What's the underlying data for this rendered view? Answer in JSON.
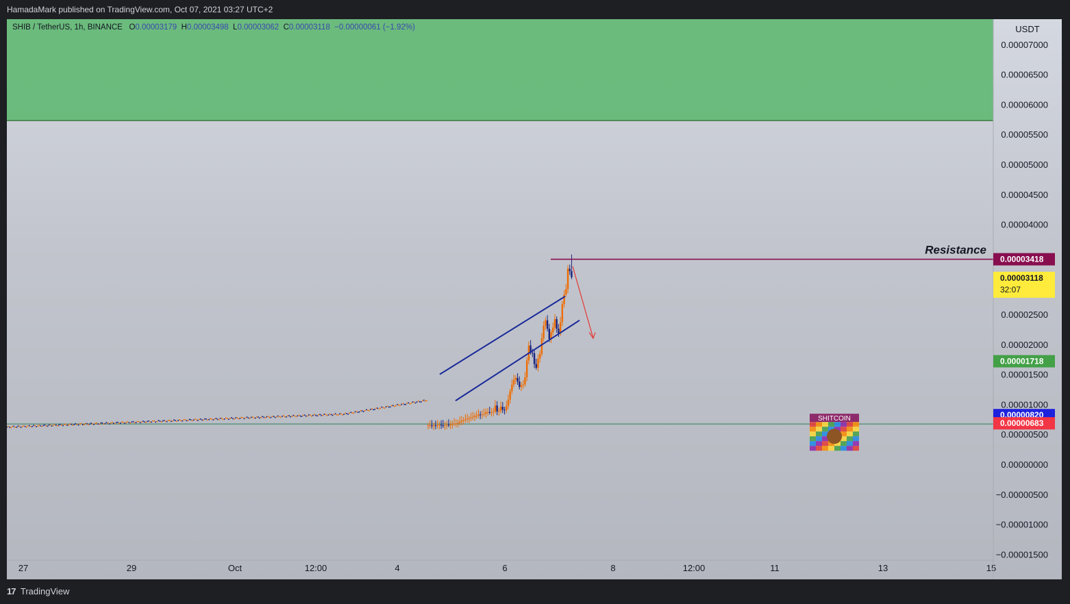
{
  "header": {
    "publisher_text": "HamadaMark published on TradingView.com, Oct 07, 2021 03:27 UTC+2"
  },
  "legend": {
    "symbol": "SHIB / TetherUS, 1h, BINANCE",
    "o_label": "O",
    "o_value": "0.00003179",
    "h_label": "H",
    "h_value": "0.00003498",
    "l_label": "L",
    "l_value": "0.00003062",
    "c_label": "C",
    "c_value": "0.00003118",
    "change": "−0.00000061 (−1.92%)"
  },
  "footer": {
    "logo_glyph": "17",
    "brand": "TradingView"
  },
  "colors": {
    "up": "#ef6c00",
    "down": "#1a237e",
    "channel": "#1a2a99",
    "resistance": "#880e4f",
    "zone": "#5fb872",
    "arrow": "#e53935"
  },
  "chart_data": {
    "type": "candlestick",
    "currency": "USDT",
    "ylim": [
      -1.7e-06,
      7.3e-06
    ],
    "y_ticks": [
      "0.00007000",
      "0.00006500",
      "0.00006000",
      "0.00005500",
      "0.00005000",
      "0.00004500",
      "0.00004000",
      "0.00002500",
      "0.00002000",
      "0.00001500",
      "0.00001000",
      "0.00000500",
      "0.00000000",
      "−0.00000500",
      "−0.00001000",
      "−0.00001500"
    ],
    "y_tick_values": [
      7e-06,
      6.5e-06,
      6e-06,
      5.5e-06,
      5e-06,
      4.5e-06,
      4e-06,
      2.5e-06,
      2e-06,
      1.5e-06,
      1e-06,
      5e-07,
      0,
      -5e-07,
      -1e-06,
      -1.5e-06
    ],
    "x_ticks": [
      "27",
      "29",
      "Oct",
      "12:00",
      "4",
      "6",
      "8",
      "12:00",
      "11",
      "13",
      "15"
    ],
    "price_labels": [
      {
        "value": "0.00003418",
        "price": 3.418e-06,
        "color": "#880e4f",
        "text_color": "#ffffff"
      },
      {
        "value": "0.00003118",
        "sub": "32:07",
        "price": 3.118e-06,
        "color": "#ffeb3b",
        "text_color": "#131722"
      },
      {
        "value": "0.00001718",
        "price": 1.718e-06,
        "color": "#43a047",
        "text_color": "#ffffff"
      },
      {
        "value": "0.00000820",
        "price": 8.2e-07,
        "color": "#1e22dd",
        "text_color": "#ffffff"
      },
      {
        "value": "0.00000683",
        "price": 6.83e-07,
        "color": "#f23645",
        "text_color": "#ffffff"
      }
    ],
    "annotations": {
      "resistance_label": "Resistance",
      "badge_text": "SHITCOIN"
    },
    "support_zone": [
      5.73e-06,
      9.93e-06
    ],
    "dashed_level": 7.82e-06,
    "resistance_level": 3.418e-06,
    "candles_close": [
      6.5e-07,
      6.5e-07,
      6.4e-07,
      6.5e-07,
      6.4e-07,
      6.5e-07,
      6.6e-07,
      6.5e-07,
      6.4e-07,
      6.5e-07,
      6.6e-07,
      6.5e-07,
      6.6e-07,
      6.7e-07,
      6.8e-07,
      6.8e-07,
      6.9e-07,
      7.1e-07,
      7.3e-07,
      7.4e-07,
      7.5e-07,
      7.6e-07,
      7.7e-07,
      7.8e-07,
      7.9e-07,
      8.1e-07,
      8.1e-07,
      8.3e-07,
      8.2e-07,
      8.3e-07,
      8.4e-07,
      8.7e-07,
      8.7e-07,
      8.6e-07,
      8.7e-07,
      8.8e-07,
      9.8e-07,
      8.8e-07,
      8.9e-07,
      9.6e-07,
      9.1e-07,
      9e-07,
      9.7e-07,
      1.08e-06,
      1.22e-06,
      1.33e-06,
      1.41e-06,
      1.44e-06,
      1.38e-06,
      1.29e-06,
      1.32e-06,
      1.33e-06,
      1.45e-06,
      1.73e-06,
      1.98e-06,
      1.86e-06,
      1.85e-06,
      1.67e-06,
      1.61e-06,
      1.76e-06,
      1.84e-06,
      2.1e-06,
      2.31e-06,
      2.4e-06,
      2.26e-06,
      2.09e-06,
      2.2e-06,
      2.28e-06,
      2.42e-06,
      2.26e-06,
      2.18e-06,
      2.37e-06,
      2.67e-06,
      2.83e-06,
      2.92e-06,
      3.26e-06,
      3.22e-06,
      3.118e-06
    ]
  }
}
